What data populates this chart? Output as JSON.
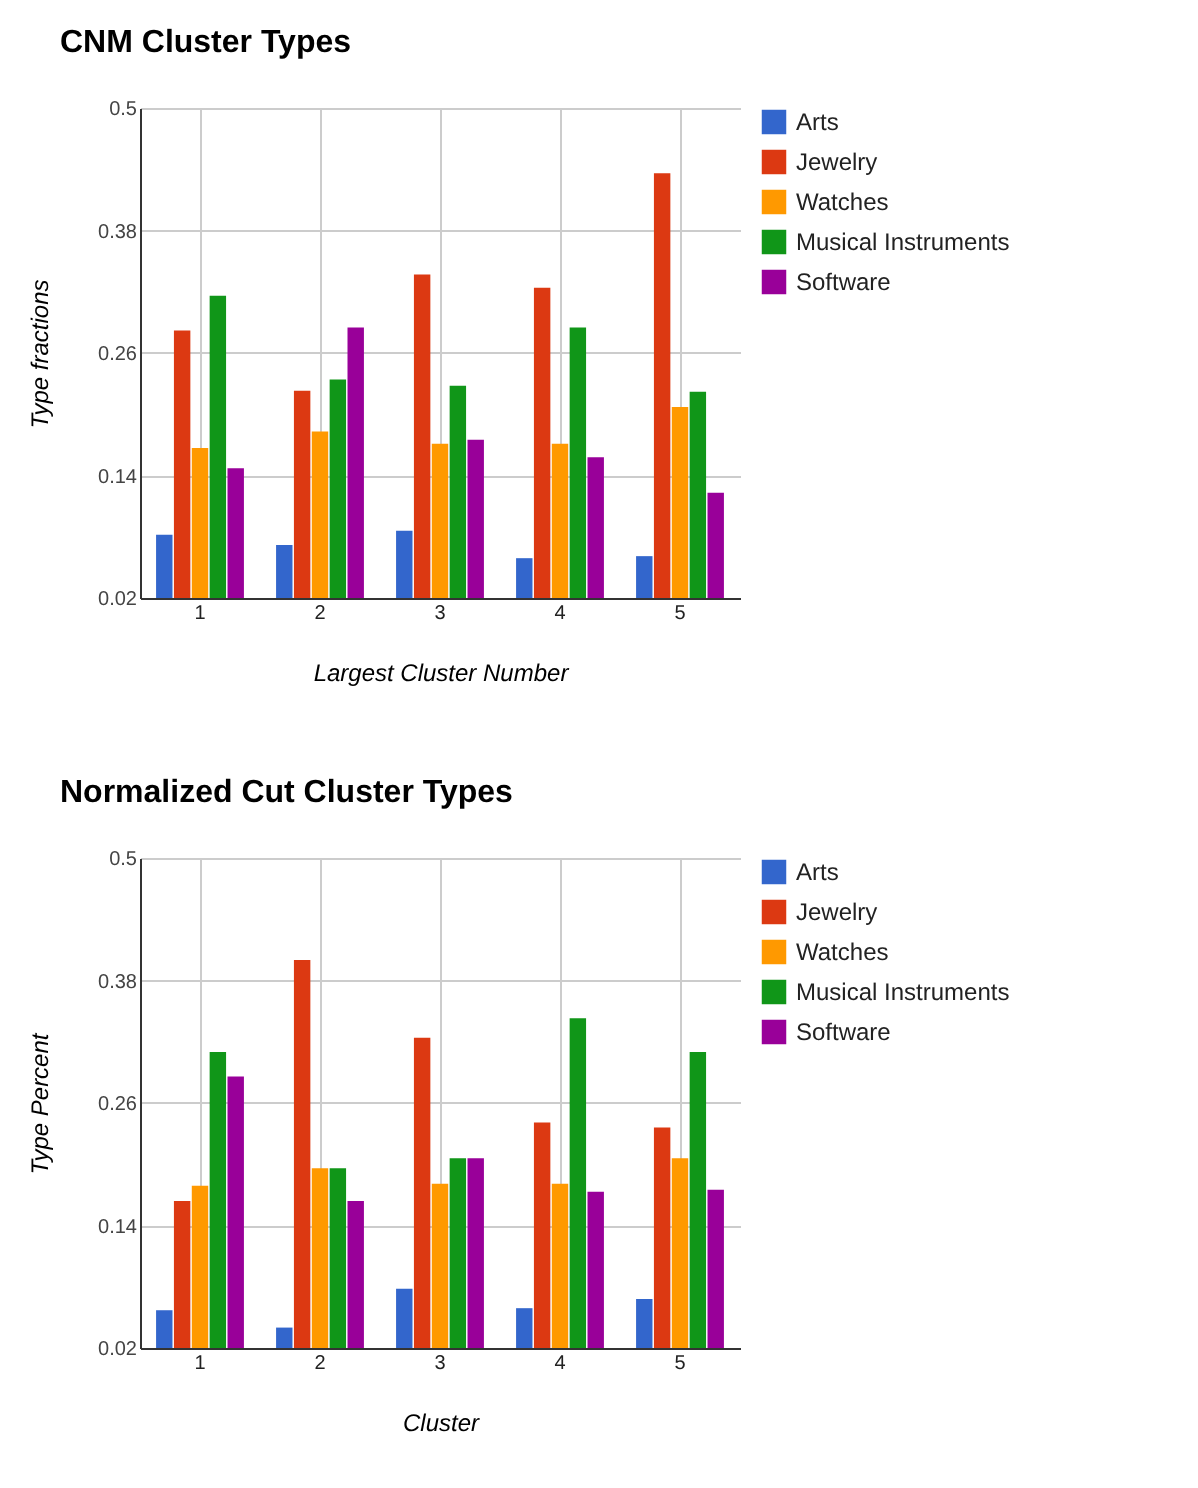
{
  "chart_data": [
    {
      "type": "bar",
      "title": "CNM Cluster Types",
      "xlabel": "Largest Cluster Number",
      "ylabel": "Type fractions",
      "categories": [
        "1",
        "2",
        "3",
        "4",
        "5"
      ],
      "ylim": [
        0.02,
        0.5
      ],
      "yticks": [
        0.02,
        0.14,
        0.26,
        0.38,
        0.5
      ],
      "grid": true,
      "legend": "right",
      "series": [
        {
          "name": "Arts",
          "color": "#3366cc",
          "values": [
            0.082,
            0.072,
            0.086,
            0.059,
            0.061
          ]
        },
        {
          "name": "Jewelry",
          "color": "#dc3912",
          "values": [
            0.282,
            0.223,
            0.337,
            0.324,
            0.436
          ]
        },
        {
          "name": "Watches",
          "color": "#ff9900",
          "values": [
            0.167,
            0.183,
            0.171,
            0.171,
            0.207
          ]
        },
        {
          "name": "Musical Instruments",
          "color": "#109618",
          "values": [
            0.316,
            0.234,
            0.228,
            0.285,
            0.222
          ]
        },
        {
          "name": "Software",
          "color": "#990099",
          "values": [
            0.147,
            0.285,
            0.175,
            0.158,
            0.123
          ]
        }
      ]
    },
    {
      "type": "bar",
      "title": "Normalized Cut Cluster Types",
      "xlabel": "Cluster",
      "ylabel": "Type Percent",
      "categories": [
        "1",
        "2",
        "3",
        "4",
        "5"
      ],
      "ylim": [
        0.02,
        0.5
      ],
      "yticks": [
        0.02,
        0.14,
        0.26,
        0.38,
        0.5
      ],
      "grid": true,
      "legend": "right",
      "series": [
        {
          "name": "Arts",
          "color": "#3366cc",
          "values": [
            0.057,
            0.04,
            0.078,
            0.059,
            0.068
          ]
        },
        {
          "name": "Jewelry",
          "color": "#dc3912",
          "values": [
            0.164,
            0.4,
            0.324,
            0.241,
            0.236
          ]
        },
        {
          "name": "Watches",
          "color": "#ff9900",
          "values": [
            0.179,
            0.196,
            0.181,
            0.181,
            0.206
          ]
        },
        {
          "name": "Musical Instruments",
          "color": "#109618",
          "values": [
            0.31,
            0.196,
            0.206,
            0.343,
            0.31
          ]
        },
        {
          "name": "Software",
          "color": "#990099",
          "values": [
            0.286,
            0.164,
            0.206,
            0.173,
            0.175
          ]
        }
      ]
    }
  ]
}
